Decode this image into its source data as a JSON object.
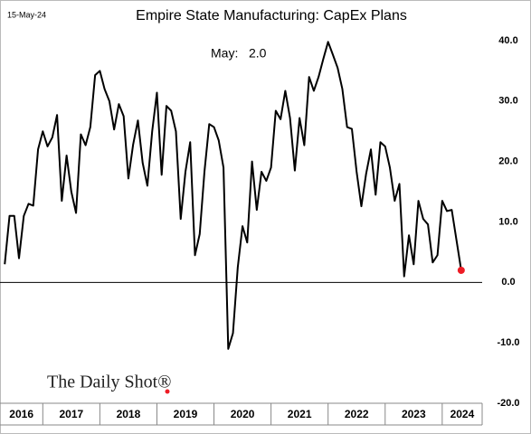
{
  "chart_data": {
    "type": "line",
    "title": "Empire State Manufacturing: CapEx Plans",
    "date": "15-May-24",
    "annotation": "May:   2.0",
    "source": "The Daily Shot®",
    "x": [
      2016.333,
      2016.417,
      2016.5,
      2016.583,
      2016.667,
      2016.75,
      2016.833,
      2016.917,
      2017,
      2017.083,
      2017.167,
      2017.25,
      2017.333,
      2017.417,
      2017.5,
      2017.583,
      2017.667,
      2017.75,
      2017.833,
      2017.917,
      2018,
      2018.083,
      2018.167,
      2018.25,
      2018.333,
      2018.417,
      2018.5,
      2018.583,
      2018.667,
      2018.75,
      2018.833,
      2018.917,
      2019,
      2019.083,
      2019.167,
      2019.25,
      2019.333,
      2019.417,
      2019.5,
      2019.583,
      2019.667,
      2019.75,
      2019.833,
      2019.917,
      2020,
      2020.083,
      2020.167,
      2020.25,
      2020.333,
      2020.417,
      2020.5,
      2020.583,
      2020.667,
      2020.75,
      2020.833,
      2020.917,
      2021,
      2021.083,
      2021.167,
      2021.25,
      2021.333,
      2021.417,
      2021.5,
      2021.583,
      2021.667,
      2021.75,
      2021.833,
      2021.917,
      2022,
      2022.083,
      2022.167,
      2022.25,
      2022.333,
      2022.417,
      2022.5,
      2022.583,
      2022.667,
      2022.75,
      2022.833,
      2022.917,
      2023,
      2023.083,
      2023.167,
      2023.25,
      2023.333,
      2023.417,
      2023.5,
      2023.583,
      2023.667,
      2023.75,
      2023.833,
      2023.917,
      2024,
      2024.083,
      2024.167,
      2024.25,
      2024.333
    ],
    "series": [
      {
        "name": "CapEx Plans",
        "color": "#000000",
        "values": [
          3,
          11,
          11,
          4,
          11,
          13,
          12.7,
          22,
          25,
          22.5,
          24,
          27.7,
          13.5,
          21,
          15,
          11.5,
          24.5,
          22.7,
          25.7,
          34.3,
          35,
          32,
          30,
          25.3,
          29.5,
          27.5,
          17.2,
          22.8,
          26.8,
          19.8,
          16,
          25,
          31.4,
          17.8,
          29.2,
          28.4,
          25,
          10.5,
          18.3,
          23.2,
          4.5,
          8,
          18.3,
          26.2,
          25.7,
          23.5,
          19,
          -11,
          -8.4,
          2.5,
          9.3,
          6.6,
          20,
          12,
          18.3,
          16.8,
          19,
          28.4,
          27,
          31.7,
          27.2,
          18.5,
          27.2,
          22.7,
          34,
          31.7,
          34,
          37,
          39.8,
          37.7,
          35.5,
          32,
          25.7,
          25.4,
          18.3,
          12.6,
          18,
          22,
          14.5,
          23.2,
          22.5,
          19,
          13.5,
          16.3,
          1,
          7.8,
          3,
          13.5,
          10.5,
          9.6,
          3.3,
          4.5,
          13.5,
          11.8,
          12,
          7,
          2.0
        ]
      }
    ],
    "marker_color": "#ee1c25",
    "xlim": [
      2016.25,
      2024.7
    ],
    "xticks": [
      2016,
      2017,
      2018,
      2019,
      2020,
      2021,
      2022,
      2023,
      2024
    ],
    "ylim": [
      -20,
      41
    ],
    "yticks": [
      {
        "value": -20,
        "label": "-20.0"
      },
      {
        "value": -10,
        "label": "-10.0"
      },
      {
        "value": 0,
        "label": "0.0"
      },
      {
        "value": 10,
        "label": "10.0"
      },
      {
        "value": 20,
        "label": "20.0"
      },
      {
        "value": 30,
        "label": "30.0"
      },
      {
        "value": 40,
        "label": "40.0"
      }
    ],
    "zero_line": true
  }
}
